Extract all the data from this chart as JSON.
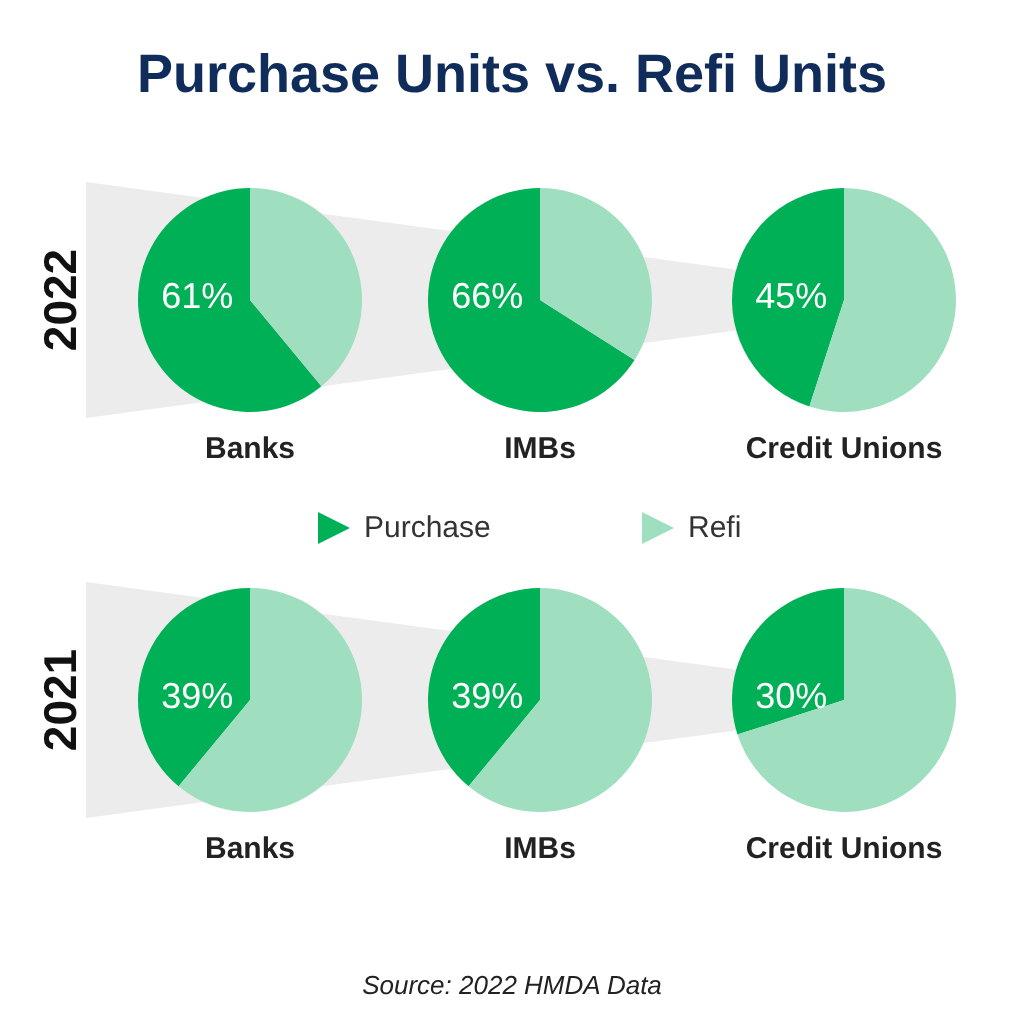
{
  "chart_data": [
    {
      "type": "pie",
      "title": "Purchase Units vs. Refi Units",
      "ylabel": "2022",
      "xlabel": "Banks",
      "categories": [
        null,
        null
      ],
      "values": [
        61,
        39
      ],
      "colors": [
        "#00b057",
        "#a0dec0"
      ],
      "value_labels": [
        "61%",
        null
      ]
    },
    {
      "type": "pie",
      "xlabel": "IMBs",
      "categories": [
        "Purchase",
        "Refi"
      ],
      "values": [
        66,
        34
      ],
      "colors": [
        "#00b057",
        "#a0dec0"
      ],
      "value_labels": [
        "66%",
        null
      ],
      "legend": "bottom"
    },
    {
      "type": "pie",
      "xlabel": "Credit Unions",
      "categories": [
        null,
        null
      ],
      "values": [
        45,
        55
      ],
      "colors": [
        "#00b057",
        "#a0dec0"
      ],
      "value_labels": [
        "45%",
        null
      ]
    },
    {
      "type": "pie",
      "ylabel": "2021",
      "xlabel": "Banks",
      "categories": [
        null,
        null
      ],
      "values": [
        39,
        61
      ],
      "colors": [
        "#00b057",
        "#a0dec0"
      ],
      "value_labels": [
        "39%",
        null
      ]
    },
    {
      "type": "pie",
      "xlabel": "IMBs",
      "categories": [
        null,
        null
      ],
      "values": [
        39,
        61
      ],
      "colors": [
        "#00b057",
        "#a0dec0"
      ],
      "value_labels": [
        "39%",
        null
      ],
      "annotations": [
        "Source: 2022 HMDA Data"
      ]
    },
    {
      "type": "pie",
      "xlabel": "Credit Unions",
      "categories": [
        null,
        null
      ],
      "values": [
        30,
        70
      ],
      "colors": [
        "#00b057",
        "#a0dec0"
      ],
      "value_labels": [
        "30%",
        null
      ]
    }
  ]
}
